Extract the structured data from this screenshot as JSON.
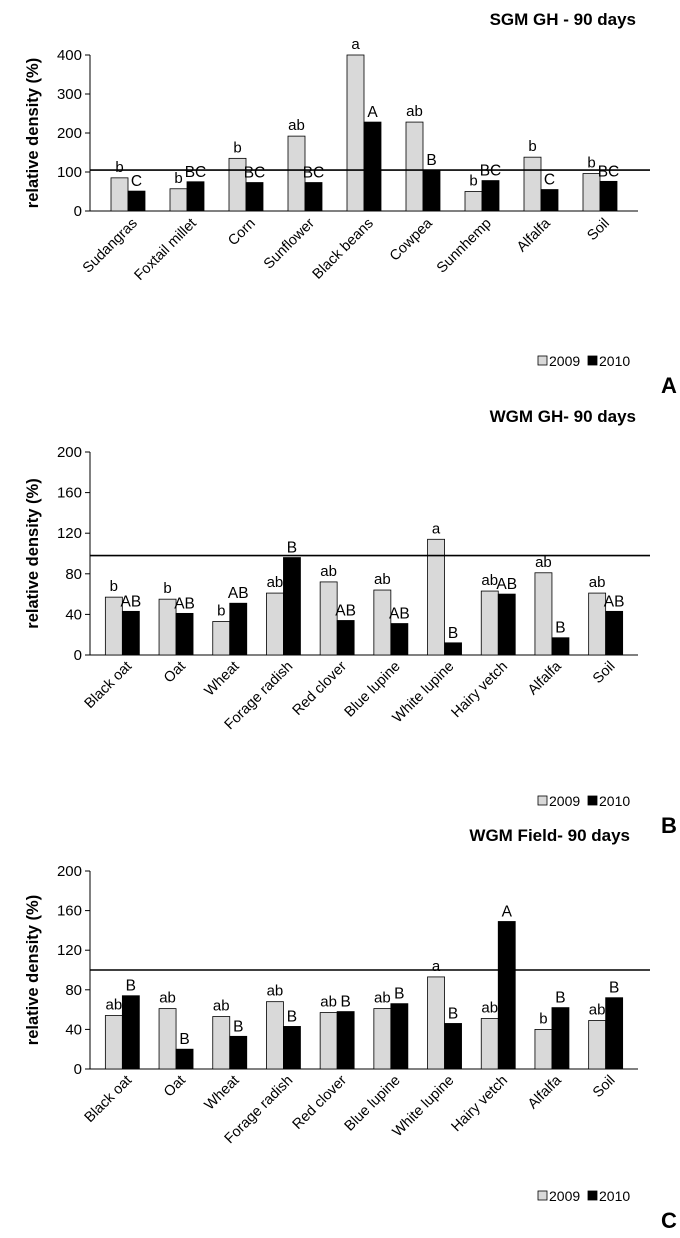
{
  "colors": {
    "series_2009": "#d9d9d9",
    "series_2010": "#000000",
    "bar_stroke": "#000000",
    "reference_line": "#000000"
  },
  "chart_data": [
    {
      "type": "bar",
      "panel_letter": "A",
      "title": "SGM GH - 90 days",
      "xlabel": "",
      "ylabel": "relative density (%)",
      "ylim": [
        0,
        400
      ],
      "yticks": [
        "0",
        "100",
        "200",
        "300",
        "400"
      ],
      "grid": false,
      "legend": "bottom-right",
      "reference_line": 105,
      "categories": [
        "Sudangras",
        "Foxtail millet",
        "Corn",
        "Sunflower",
        "Black beans",
        "Cowpea",
        "Sunnhemp",
        "Alfalfa",
        "Soil"
      ],
      "series": [
        {
          "name": "2009",
          "values": [
            85,
            57,
            135,
            192,
            400,
            228,
            50,
            138,
            96
          ],
          "labels": [
            "b",
            "b",
            "b",
            "ab",
            "a",
            "ab",
            "b",
            "b",
            "b"
          ]
        },
        {
          "name": "2010",
          "values": [
            51,
            75,
            73,
            73,
            228,
            105,
            78,
            55,
            76
          ],
          "labels": [
            "C",
            "BC",
            "BC",
            "BC",
            "A",
            "B",
            "BC",
            "C",
            "BC"
          ]
        }
      ]
    },
    {
      "type": "bar",
      "panel_letter": "B",
      "title": "WGM GH- 90 days",
      "xlabel": "",
      "ylabel": "relative density (%)",
      "ylim": [
        0,
        200
      ],
      "yticks": [
        "0",
        "40",
        "80",
        "120",
        "160",
        "200"
      ],
      "grid": false,
      "legend": "bottom-right",
      "reference_line": 98,
      "categories": [
        "Black oat",
        "Oat",
        "Wheat",
        "Forage radish",
        "Red clover",
        "Blue lupine",
        "White lupine",
        "Hairy vetch",
        "Alfalfa",
        "Soil"
      ],
      "series": [
        {
          "name": "2009",
          "values": [
            57,
            55,
            33,
            61,
            72,
            64,
            114,
            63,
            81,
            61
          ],
          "labels": [
            "b",
            "b",
            "b",
            "ab",
            "ab",
            "ab",
            "a",
            "ab",
            "ab",
            "ab"
          ]
        },
        {
          "name": "2010",
          "values": [
            43,
            41,
            51,
            96,
            34,
            31,
            12,
            60,
            17,
            43
          ],
          "labels": [
            "AB",
            "AB",
            "AB",
            "B",
            "AB",
            "AB",
            "B",
            "AB",
            "B",
            "AB"
          ]
        }
      ]
    },
    {
      "type": "bar",
      "panel_letter": "C",
      "title": "WGM Field- 90 days",
      "xlabel": "",
      "ylabel": "relative density (%)",
      "ylim": [
        0,
        200
      ],
      "yticks": [
        "0",
        "40",
        "80",
        "120",
        "160",
        "200"
      ],
      "grid": false,
      "legend": "bottom-right",
      "reference_line": 100,
      "categories": [
        "Black oat",
        "Oat",
        "Wheat",
        "Forage radish",
        "Red clover",
        "Blue lupine",
        "White lupine",
        "Hairy vetch",
        "Alfalfa",
        "Soil"
      ],
      "series": [
        {
          "name": "2009",
          "values": [
            54,
            61,
            53,
            68,
            57,
            61,
            93,
            51,
            40,
            49
          ],
          "labels": [
            "ab",
            "ab",
            "ab",
            "ab",
            "ab",
            "ab",
            "a",
            "ab",
            "b",
            "ab"
          ]
        },
        {
          "name": "2010",
          "values": [
            74,
            20,
            33,
            43,
            58,
            66,
            46,
            149,
            62,
            72
          ],
          "labels": [
            "B",
            "B",
            "B",
            "B",
            "B",
            "B",
            "B",
            "A",
            "B",
            "B"
          ]
        }
      ]
    }
  ]
}
